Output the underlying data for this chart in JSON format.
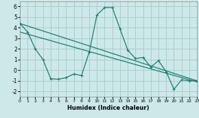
{
  "xlabel": "Humidex (Indice chaleur)",
  "background_color": "#cce8e8",
  "grid_color": "#aacccc",
  "line_color": "#1a7a6e",
  "xlim": [
    0,
    23
  ],
  "ylim": [
    -2.5,
    6.5
  ],
  "xticks": [
    0,
    1,
    2,
    3,
    4,
    5,
    6,
    7,
    8,
    9,
    10,
    11,
    12,
    13,
    14,
    15,
    16,
    17,
    18,
    19,
    20,
    21,
    22,
    23
  ],
  "yticks": [
    -2,
    -1,
    0,
    1,
    2,
    3,
    4,
    5,
    6
  ],
  "line_zigzag": {
    "x": [
      0,
      1,
      2,
      3,
      4,
      5,
      6,
      7,
      8,
      9,
      10,
      11,
      12,
      13,
      14,
      15,
      16,
      17,
      18,
      19,
      20,
      21,
      22,
      23
    ],
    "y": [
      4.4,
      3.6,
      2.0,
      1.0,
      -0.8,
      -0.85,
      -0.7,
      -0.35,
      -0.5,
      1.7,
      5.2,
      5.9,
      5.9,
      3.9,
      1.9,
      1.1,
      1.2,
      0.3,
      0.9,
      -0.15,
      -1.8,
      -0.9,
      -1.0,
      -1.0
    ]
  },
  "line_upper": {
    "x": [
      0,
      23
    ],
    "y": [
      4.4,
      -1.0
    ]
  },
  "line_lower": {
    "x": [
      0,
      23
    ],
    "y": [
      3.6,
      -1.1
    ]
  }
}
